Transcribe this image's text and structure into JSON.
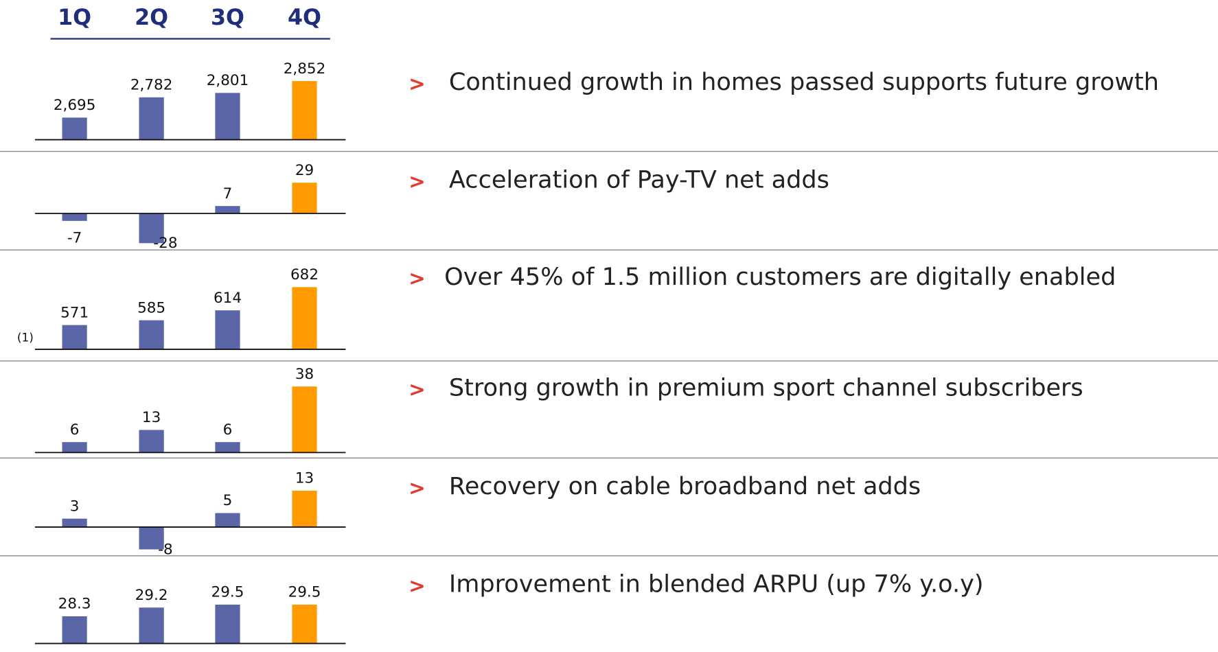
{
  "quarters": [
    "1Q",
    "2Q",
    "3Q",
    "4Q"
  ],
  "bullet": ">",
  "chart_data": [
    {
      "type": "bar",
      "values": [
        2695,
        2782,
        2801,
        2852
      ],
      "value_labels": [
        "2,695",
        "2,782",
        "2,801",
        "2,852"
      ],
      "colors": [
        "#5a66a8",
        "#5a66a8",
        "#5a66a8",
        "#ff9a00"
      ],
      "ylim": [
        2600,
        2900
      ],
      "annotation": "Continued growth in homes passed supports future growth"
    },
    {
      "type": "bar",
      "values": [
        -7,
        -28,
        7,
        29
      ],
      "colors": [
        "#5a66a8",
        "#5a66a8",
        "#5a66a8",
        "#ff9a00"
      ],
      "ylim": [
        -30,
        30
      ],
      "annotation": "Acceleration of Pay-TV net adds"
    },
    {
      "type": "bar",
      "values": [
        571,
        585,
        614,
        682
      ],
      "colors": [
        "#5a66a8",
        "#5a66a8",
        "#5a66a8",
        "#ff9a00"
      ],
      "ylim": [
        500,
        700
      ],
      "footnote": "(1)",
      "annotation": "Over 45% of 1.5 million customers are digitally enabled"
    },
    {
      "type": "bar",
      "values": [
        6,
        13,
        6,
        38
      ],
      "colors": [
        "#5a66a8",
        "#5a66a8",
        "#5a66a8",
        "#ff9a00"
      ],
      "ylim": [
        0,
        40
      ],
      "annotation": "Strong growth in premium sport channel subscribers"
    },
    {
      "type": "bar",
      "values": [
        3,
        -8,
        5,
        13
      ],
      "colors": [
        "#5a66a8",
        "#5a66a8",
        "#5a66a8",
        "#ff9a00"
      ],
      "ylim": [
        -10,
        15
      ],
      "annotation": "Recovery on cable broadband net adds"
    },
    {
      "type": "bar",
      "values": [
        28.3,
        29.2,
        29.5,
        29.5
      ],
      "colors": [
        "#5a66a8",
        "#5a66a8",
        "#5a66a8",
        "#ff9a00"
      ],
      "ylim": [
        25.5,
        30
      ],
      "annotation": "Improvement in blended ARPU (up 7% y.o.y)"
    }
  ]
}
